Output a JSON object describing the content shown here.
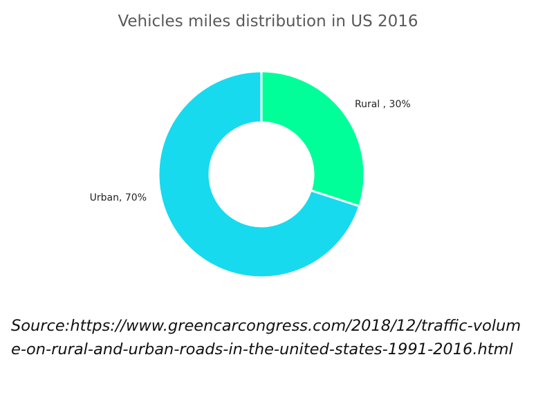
{
  "chart_data": {
    "type": "pie",
    "title": "Vehicles miles distribution in US 2016",
    "hole": true,
    "slices": [
      {
        "label": "Rural , 30%",
        "category": "Rural",
        "value": 30,
        "color": "#00FF99"
      },
      {
        "label": "Urban, 70%",
        "category": "Urban",
        "value": 70,
        "color": "#17DAEF"
      }
    ],
    "legend": "none"
  },
  "source": {
    "text": "Source:https://www.greencarcongress.com/2018/12/traffic-volume-on-rural-and-urban-roads-in-the-united-states-1991-2016.html"
  }
}
